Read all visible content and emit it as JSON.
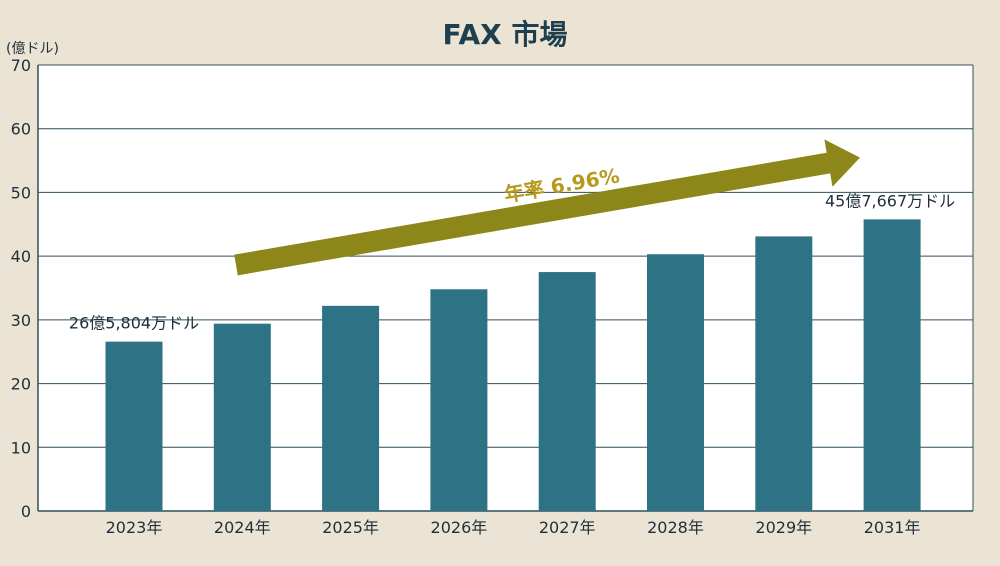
{
  "chart_data": {
    "type": "bar",
    "title": "FAX 市場",
    "ylabel": "(億ドル)",
    "categories": [
      "2023年",
      "2024年",
      "2025年",
      "2026年",
      "2027年",
      "2028年",
      "2029年",
      "2031年"
    ],
    "values": [
      26.58,
      29.4,
      32.2,
      34.8,
      37.5,
      40.3,
      43.1,
      45.77
    ],
    "ylim": [
      0,
      70
    ],
    "yticks": [
      0,
      10,
      20,
      30,
      40,
      50,
      60,
      70
    ],
    "grid": true,
    "annotations": {
      "first_label": "26億5,804万ドル",
      "last_label": "45億7,667万ドル",
      "cagr_label": "年率 6.96%"
    },
    "colors": {
      "bar": "#2e7385",
      "arrow": "#8d8619",
      "cagr_text": "#b59a1d",
      "grid": "#2f4f5a",
      "title": "#1f3f4f",
      "background": "#ebe4d5",
      "plot_background": "#ffffff"
    }
  }
}
